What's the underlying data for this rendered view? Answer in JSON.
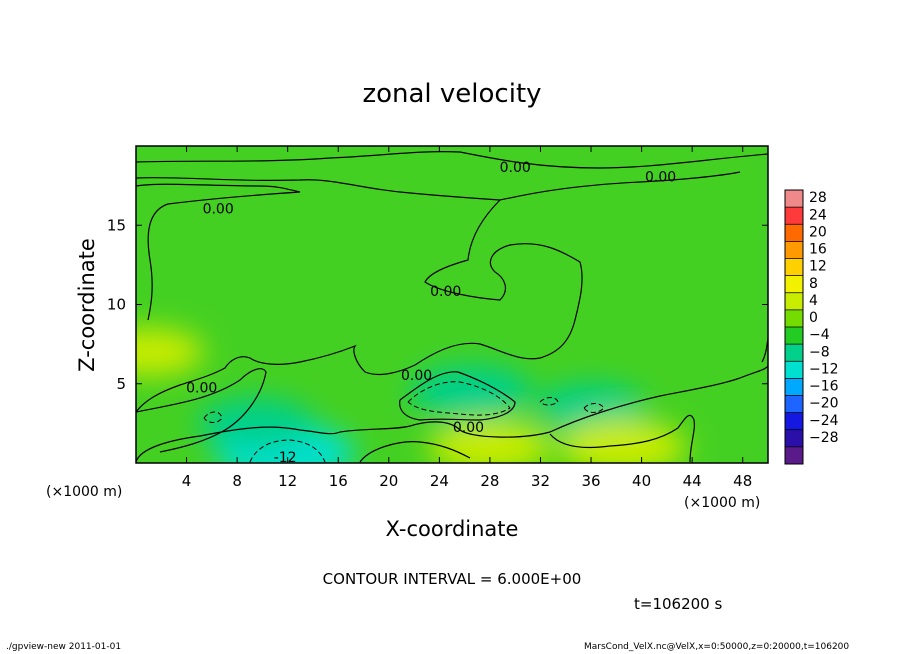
{
  "chart_data": {
    "type": "heatmap",
    "title": "zonal velocity",
    "xlabel": "X-coordinate",
    "ylabel": "Z-coordinate",
    "x_unit": "(×1000 m)",
    "z_unit": "(×1000 m)",
    "xlim": [
      0,
      50
    ],
    "ylim": [
      0,
      20
    ],
    "x_ticks": [
      4,
      8,
      12,
      16,
      20,
      24,
      28,
      32,
      36,
      40,
      44,
      48
    ],
    "y_ticks": [
      5,
      10,
      15
    ],
    "colorbar": {
      "labels": [
        "28",
        "24",
        "20",
        "16",
        "12",
        "8",
        "4",
        "0",
        "−4",
        "−8",
        "−12",
        "−16",
        "−20",
        "−24",
        "−28"
      ],
      "colors": [
        "#f08a8a",
        "#ff3a3a",
        "#ff6a00",
        "#ff9a00",
        "#ffd000",
        "#f2f200",
        "#c8ec00",
        "#74dc00",
        "#22cc22",
        "#00d08a",
        "#00e0d0",
        "#00a8ff",
        "#1e64ff",
        "#1418e0",
        "#2a10a8",
        "#5a1a8a"
      ]
    },
    "contour_interval_text": "CONTOUR INTERVAL = 6.000E+00",
    "contour_labels": [
      {
        "text": "0.00",
        "x": 30.0,
        "z": 18.6
      },
      {
        "text": "0.00",
        "x": 41.5,
        "z": 18.0
      },
      {
        "text": "0.00",
        "x": 6.5,
        "z": 16.0
      },
      {
        "text": "0.00",
        "x": 24.5,
        "z": 10.8
      },
      {
        "text": "0.00",
        "x": 22.2,
        "z": 5.5
      },
      {
        "text": "0.00",
        "x": 5.2,
        "z": 4.7
      },
      {
        "text": "0.00",
        "x": 26.3,
        "z": 2.2
      },
      {
        "text": "-12",
        "x": 11.8,
        "z": 0.3
      }
    ],
    "regions": [
      {
        "label": "negative core",
        "x": 11.8,
        "z": 0.6,
        "value": -10
      },
      {
        "label": "negative core",
        "x": 9.5,
        "z": 2.5,
        "value": -6
      },
      {
        "label": "negative core",
        "x": 26.5,
        "z": 4.5,
        "value": -7
      },
      {
        "label": "negative core",
        "x": 36.0,
        "z": 3.5,
        "value": -5
      },
      {
        "label": "positive core",
        "x": 38.5,
        "z": 1.0,
        "value": 8
      },
      {
        "label": "positive core",
        "x": 28.0,
        "z": 1.0,
        "value": 7
      },
      {
        "label": "positive core",
        "x": 1.0,
        "z": 7.0,
        "value": 5
      }
    ],
    "grid": false,
    "legend": "right"
  },
  "time_text": "t=106200 s",
  "footer": {
    "left": "./gpview-new  2011-01-01",
    "right": "MarsCond_VelX.nc@VelX,x=0:50000,z=0:20000,t=106200"
  }
}
